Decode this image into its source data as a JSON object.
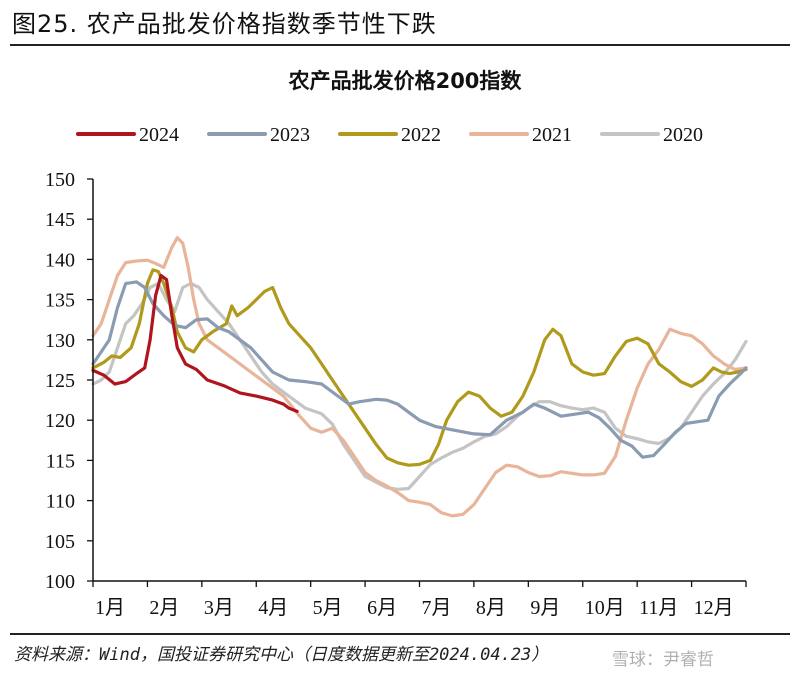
{
  "figure": {
    "title": "图25. 农产品批发价格指数季节性下跌",
    "source": "资料来源：Wind，国投证券研究中心（日度数据更新至2024.04.23）",
    "watermark": "雪球：尹睿哲"
  },
  "chart_data": {
    "type": "line",
    "title": "农产品批发价格200指数",
    "xlabel": "",
    "ylabel": "",
    "x_unit": "month position (0 = start of Jan, 12 = end of Dec)",
    "xlim": [
      0,
      12
    ],
    "ylim": [
      100,
      150
    ],
    "yticks": [
      100,
      105,
      110,
      115,
      120,
      125,
      130,
      135,
      140,
      145,
      150
    ],
    "xtick_labels": [
      "1月",
      "2月",
      "3月",
      "4月",
      "5月",
      "6月",
      "7月",
      "8月",
      "9月",
      "10月",
      "11月",
      "12月"
    ],
    "grid": false,
    "legend_position": "top",
    "series": [
      {
        "name": "2024",
        "color": "#b0141c",
        "points": [
          [
            0,
            126.2
          ],
          [
            0.2,
            125.6
          ],
          [
            0.4,
            124.5
          ],
          [
            0.6,
            124.8
          ],
          [
            0.8,
            125.8
          ],
          [
            0.95,
            126.5
          ],
          [
            1.05,
            130
          ],
          [
            1.15,
            135.5
          ],
          [
            1.25,
            138
          ],
          [
            1.35,
            137.5
          ],
          [
            1.45,
            133
          ],
          [
            1.55,
            129
          ],
          [
            1.7,
            127
          ],
          [
            1.9,
            126.3
          ],
          [
            2.1,
            125
          ],
          [
            2.4,
            124.3
          ],
          [
            2.7,
            123.4
          ],
          [
            3.0,
            123
          ],
          [
            3.3,
            122.5
          ],
          [
            3.5,
            122
          ],
          [
            3.6,
            121.5
          ],
          [
            3.75,
            121.1
          ]
        ]
      },
      {
        "name": "2023",
        "color": "#8a9bb2",
        "points": [
          [
            0,
            127
          ],
          [
            0.15,
            128.5
          ],
          [
            0.3,
            130
          ],
          [
            0.45,
            134
          ],
          [
            0.6,
            137
          ],
          [
            0.8,
            137.2
          ],
          [
            0.95,
            136.5
          ],
          [
            1.1,
            134.5
          ],
          [
            1.3,
            133
          ],
          [
            1.5,
            131.8
          ],
          [
            1.7,
            131.5
          ],
          [
            1.9,
            132.5
          ],
          [
            2.1,
            132.6
          ],
          [
            2.3,
            131.5
          ],
          [
            2.5,
            131
          ],
          [
            2.7,
            130
          ],
          [
            2.9,
            129
          ],
          [
            3.1,
            127.5
          ],
          [
            3.3,
            126
          ],
          [
            3.6,
            125
          ],
          [
            3.9,
            124.8
          ],
          [
            4.2,
            124.5
          ],
          [
            4.5,
            123
          ],
          [
            4.7,
            122
          ],
          [
            4.9,
            122.3
          ],
          [
            5.2,
            122.6
          ],
          [
            5.4,
            122.5
          ],
          [
            5.6,
            122
          ],
          [
            5.8,
            121
          ],
          [
            6.0,
            120
          ],
          [
            6.3,
            119.2
          ],
          [
            6.6,
            118.8
          ],
          [
            7.0,
            118.3
          ],
          [
            7.3,
            118.2
          ],
          [
            7.6,
            120
          ],
          [
            7.9,
            121
          ],
          [
            8.1,
            122
          ],
          [
            8.3,
            121.5
          ],
          [
            8.6,
            120.5
          ],
          [
            8.9,
            120.8
          ],
          [
            9.1,
            121
          ],
          [
            9.3,
            120.3
          ],
          [
            9.5,
            119
          ],
          [
            9.7,
            117.5
          ],
          [
            9.9,
            116.8
          ],
          [
            10.1,
            115.4
          ],
          [
            10.3,
            115.6
          ],
          [
            10.5,
            117
          ],
          [
            10.7,
            118.5
          ],
          [
            10.9,
            119.6
          ],
          [
            11.1,
            119.8
          ],
          [
            11.3,
            120
          ],
          [
            11.5,
            123
          ],
          [
            11.7,
            124.5
          ],
          [
            11.9,
            125.8
          ],
          [
            12,
            126.5
          ]
        ]
      },
      {
        "name": "2022",
        "color": "#b09a1c",
        "points": [
          [
            0,
            126.5
          ],
          [
            0.2,
            127.2
          ],
          [
            0.35,
            128
          ],
          [
            0.5,
            127.8
          ],
          [
            0.7,
            129
          ],
          [
            0.85,
            132
          ],
          [
            1.0,
            137
          ],
          [
            1.1,
            138.7
          ],
          [
            1.2,
            138.5
          ],
          [
            1.3,
            137
          ],
          [
            1.45,
            134
          ],
          [
            1.55,
            131
          ],
          [
            1.7,
            129
          ],
          [
            1.85,
            128.5
          ],
          [
            2.0,
            130
          ],
          [
            2.2,
            131
          ],
          [
            2.45,
            132
          ],
          [
            2.55,
            134.2
          ],
          [
            2.65,
            133
          ],
          [
            2.85,
            134
          ],
          [
            3.0,
            135
          ],
          [
            3.15,
            136
          ],
          [
            3.3,
            136.5
          ],
          [
            3.45,
            134
          ],
          [
            3.6,
            132
          ],
          [
            3.8,
            130.5
          ],
          [
            4.0,
            129
          ],
          [
            4.2,
            127
          ],
          [
            4.4,
            125
          ],
          [
            4.6,
            123
          ],
          [
            4.8,
            121
          ],
          [
            5.0,
            119
          ],
          [
            5.2,
            117
          ],
          [
            5.4,
            115.3
          ],
          [
            5.6,
            114.7
          ],
          [
            5.8,
            114.4
          ],
          [
            6.0,
            114.5
          ],
          [
            6.2,
            115
          ],
          [
            6.35,
            117
          ],
          [
            6.5,
            120
          ],
          [
            6.7,
            122.3
          ],
          [
            6.9,
            123.5
          ],
          [
            7.1,
            123
          ],
          [
            7.3,
            121.5
          ],
          [
            7.5,
            120.5
          ],
          [
            7.7,
            121
          ],
          [
            7.9,
            123
          ],
          [
            8.1,
            126
          ],
          [
            8.3,
            130
          ],
          [
            8.45,
            131.3
          ],
          [
            8.6,
            130.5
          ],
          [
            8.8,
            127
          ],
          [
            9.0,
            126
          ],
          [
            9.2,
            125.6
          ],
          [
            9.4,
            125.8
          ],
          [
            9.6,
            128
          ],
          [
            9.8,
            129.8
          ],
          [
            10.0,
            130.2
          ],
          [
            10.2,
            129.5
          ],
          [
            10.4,
            127
          ],
          [
            10.6,
            126
          ],
          [
            10.8,
            124.8
          ],
          [
            11.0,
            124.2
          ],
          [
            11.2,
            125
          ],
          [
            11.4,
            126.5
          ],
          [
            11.55,
            126
          ],
          [
            11.7,
            125.8
          ],
          [
            11.85,
            126
          ],
          [
            12,
            126.3
          ]
        ]
      },
      {
        "name": "2021",
        "color": "#e8b49a",
        "points": [
          [
            0,
            130.5
          ],
          [
            0.15,
            132
          ],
          [
            0.3,
            135
          ],
          [
            0.45,
            138
          ],
          [
            0.6,
            139.6
          ],
          [
            0.8,
            139.8
          ],
          [
            1.0,
            139.9
          ],
          [
            1.15,
            139.5
          ],
          [
            1.3,
            139
          ],
          [
            1.45,
            141.5
          ],
          [
            1.55,
            142.7
          ],
          [
            1.65,
            142
          ],
          [
            1.75,
            139
          ],
          [
            1.85,
            135
          ],
          [
            1.95,
            132
          ],
          [
            2.1,
            130
          ],
          [
            2.3,
            129
          ],
          [
            2.6,
            127.5
          ],
          [
            2.9,
            126
          ],
          [
            3.2,
            124.5
          ],
          [
            3.5,
            123
          ],
          [
            3.8,
            120.5
          ],
          [
            4.0,
            119
          ],
          [
            4.2,
            118.5
          ],
          [
            4.4,
            119
          ],
          [
            4.6,
            117.5
          ],
          [
            4.8,
            115.5
          ],
          [
            5.0,
            113.5
          ],
          [
            5.2,
            112.5
          ],
          [
            5.4,
            111.8
          ],
          [
            5.6,
            111
          ],
          [
            5.8,
            110
          ],
          [
            6.0,
            109.8
          ],
          [
            6.2,
            109.5
          ],
          [
            6.4,
            108.5
          ],
          [
            6.6,
            108.1
          ],
          [
            6.8,
            108.3
          ],
          [
            7.0,
            109.5
          ],
          [
            7.2,
            111.5
          ],
          [
            7.4,
            113.5
          ],
          [
            7.6,
            114.4
          ],
          [
            7.8,
            114.2
          ],
          [
            8.0,
            113.5
          ],
          [
            8.2,
            113
          ],
          [
            8.4,
            113.1
          ],
          [
            8.6,
            113.6
          ],
          [
            8.8,
            113.4
          ],
          [
            9.0,
            113.2
          ],
          [
            9.2,
            113.2
          ],
          [
            9.4,
            113.4
          ],
          [
            9.6,
            115.5
          ],
          [
            9.8,
            120
          ],
          [
            10.0,
            124
          ],
          [
            10.2,
            127
          ],
          [
            10.4,
            128.8
          ],
          [
            10.6,
            131.3
          ],
          [
            10.8,
            130.8
          ],
          [
            11.0,
            130.5
          ],
          [
            11.2,
            129.5
          ],
          [
            11.4,
            128
          ],
          [
            11.6,
            127
          ],
          [
            11.8,
            126.3
          ],
          [
            12,
            126.5
          ]
        ]
      },
      {
        "name": "2020",
        "color": "#c4c4c4",
        "points": [
          [
            0,
            124.5
          ],
          [
            0.15,
            125
          ],
          [
            0.3,
            126
          ],
          [
            0.45,
            129
          ],
          [
            0.6,
            132
          ],
          [
            0.75,
            133
          ],
          [
            0.9,
            134.5
          ],
          [
            1.05,
            136.5
          ],
          [
            1.2,
            137
          ],
          [
            1.35,
            135
          ],
          [
            1.5,
            133.5
          ],
          [
            1.65,
            136.5
          ],
          [
            1.8,
            137
          ],
          [
            1.95,
            136.5
          ],
          [
            2.1,
            135
          ],
          [
            2.3,
            133.5
          ],
          [
            2.5,
            132
          ],
          [
            2.7,
            130
          ],
          [
            2.9,
            128
          ],
          [
            3.1,
            126
          ],
          [
            3.3,
            124.5
          ],
          [
            3.6,
            123
          ],
          [
            3.9,
            121.5
          ],
          [
            4.2,
            120.8
          ],
          [
            4.4,
            119.5
          ],
          [
            4.6,
            117
          ],
          [
            4.8,
            115
          ],
          [
            5.0,
            113
          ],
          [
            5.2,
            112.3
          ],
          [
            5.4,
            111.6
          ],
          [
            5.6,
            111.4
          ],
          [
            5.8,
            111.5
          ],
          [
            6.0,
            113
          ],
          [
            6.2,
            114.5
          ],
          [
            6.4,
            115.3
          ],
          [
            6.6,
            116
          ],
          [
            6.8,
            116.5
          ],
          [
            7.0,
            117.3
          ],
          [
            7.2,
            118
          ],
          [
            7.4,
            118.3
          ],
          [
            7.6,
            119.2
          ],
          [
            7.8,
            120.5
          ],
          [
            8.0,
            121.5
          ],
          [
            8.2,
            122.3
          ],
          [
            8.4,
            122.3
          ],
          [
            8.6,
            121.8
          ],
          [
            8.8,
            121.5
          ],
          [
            9.0,
            121.3
          ],
          [
            9.2,
            121.5
          ],
          [
            9.4,
            121
          ],
          [
            9.6,
            119
          ],
          [
            9.8,
            118
          ],
          [
            10.0,
            117.7
          ],
          [
            10.2,
            117.3
          ],
          [
            10.4,
            117.1
          ],
          [
            10.6,
            117.8
          ],
          [
            10.8,
            119
          ],
          [
            11.0,
            121
          ],
          [
            11.2,
            123
          ],
          [
            11.4,
            124.5
          ],
          [
            11.6,
            125.8
          ],
          [
            11.8,
            127.5
          ],
          [
            12,
            129.8
          ]
        ]
      }
    ]
  }
}
